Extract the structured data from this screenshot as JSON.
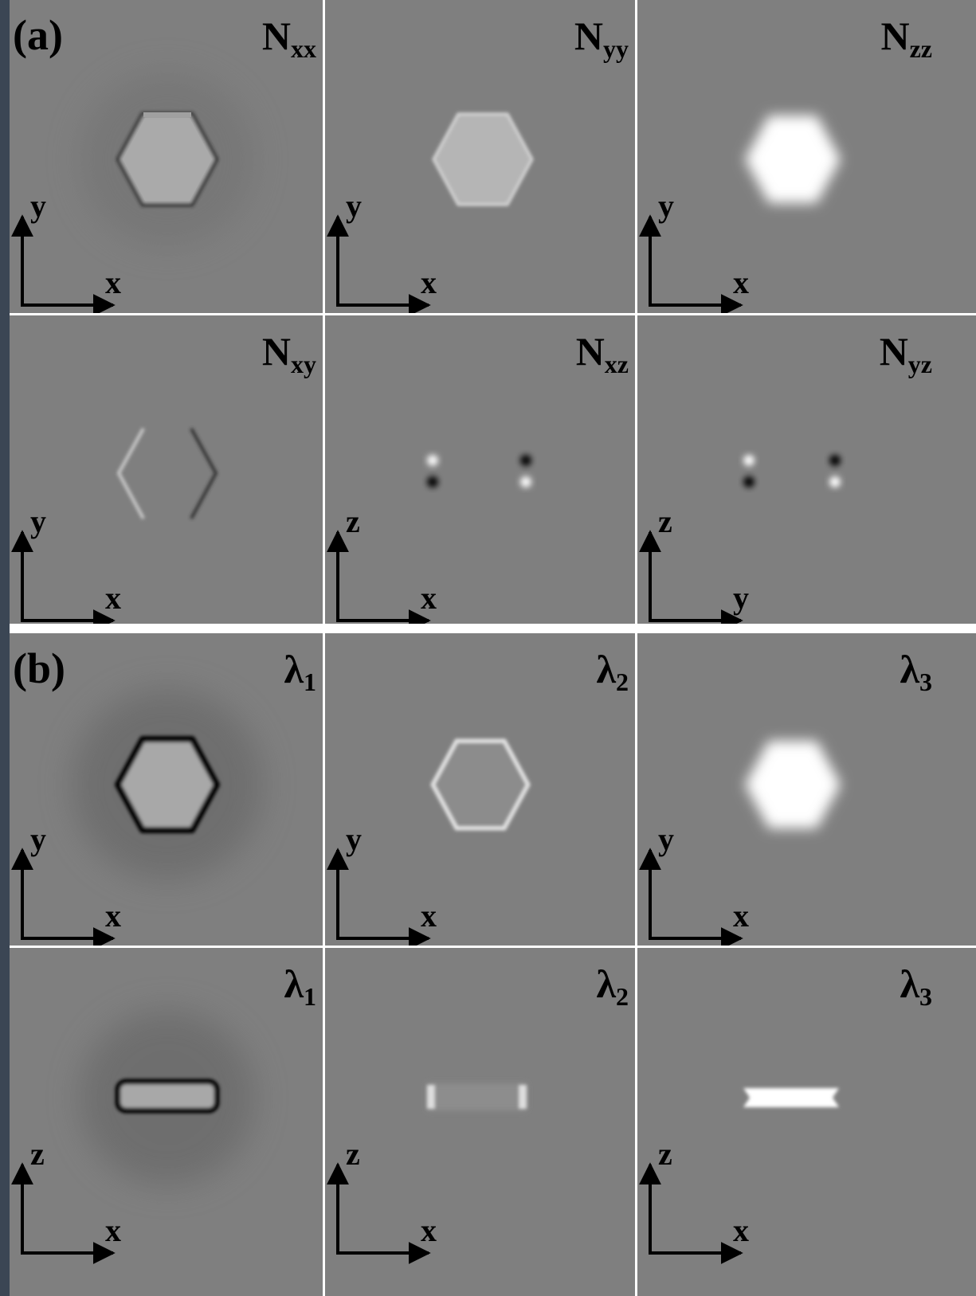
{
  "figure": {
    "part_a": {
      "label": "(a)",
      "panels": [
        {
          "title": "N",
          "subscript": "xx",
          "vertical_axis": "y",
          "horizontal_axis": "x"
        },
        {
          "title": "N",
          "subscript": "yy",
          "vertical_axis": "y",
          "horizontal_axis": "x"
        },
        {
          "title": "N",
          "subscript": "zz",
          "vertical_axis": "y",
          "horizontal_axis": "x"
        },
        {
          "title": "N",
          "subscript": "xy",
          "vertical_axis": "y",
          "horizontal_axis": "x"
        },
        {
          "title": "N",
          "subscript": "xz",
          "vertical_axis": "z",
          "horizontal_axis": "x"
        },
        {
          "title": "N",
          "subscript": "yz",
          "vertical_axis": "z",
          "horizontal_axis": "y"
        }
      ]
    },
    "part_b": {
      "label": "(b)",
      "panels": [
        {
          "title": "λ",
          "subscript": "1",
          "vertical_axis": "y",
          "horizontal_axis": "x"
        },
        {
          "title": "λ",
          "subscript": "2",
          "vertical_axis": "y",
          "horizontal_axis": "x"
        },
        {
          "title": "λ",
          "subscript": "3",
          "vertical_axis": "y",
          "horizontal_axis": "x"
        },
        {
          "title": "λ",
          "subscript": "1",
          "vertical_axis": "z",
          "horizontal_axis": "x"
        },
        {
          "title": "λ",
          "subscript": "2",
          "vertical_axis": "z",
          "horizontal_axis": "x"
        },
        {
          "title": "λ",
          "subscript": "3",
          "vertical_axis": "z",
          "horizontal_axis": "x"
        }
      ]
    }
  }
}
